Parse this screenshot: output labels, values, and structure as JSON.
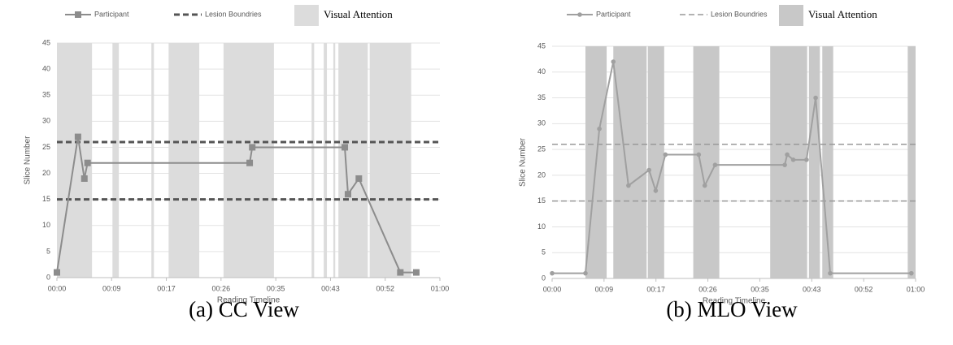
{
  "chart_data": [
    {
      "type": "line",
      "caption": "(a) CC View",
      "xlabel": "Reading Timeline",
      "ylabel": "Slice Number",
      "xlim": [
        0,
        60
      ],
      "xticks": [
        {
          "value": 0,
          "label": "00:00"
        },
        {
          "value": 8.57,
          "label": "00:09"
        },
        {
          "value": 17.14,
          "label": "00:17"
        },
        {
          "value": 25.71,
          "label": "00:26"
        },
        {
          "value": 34.29,
          "label": "00:35"
        },
        {
          "value": 42.86,
          "label": "00:43"
        },
        {
          "value": 51.43,
          "label": "00:52"
        },
        {
          "value": 60,
          "label": "01:00"
        }
      ],
      "ylim": [
        0,
        45
      ],
      "yticks": [
        0,
        5,
        10,
        15,
        20,
        25,
        30,
        35,
        40,
        45
      ],
      "grid": true,
      "series": [
        {
          "name": "Participant",
          "color": "#8c8c8c",
          "marker": "square",
          "x": [
            0,
            3.3,
            4.3,
            4.8,
            30.2,
            30.6,
            45.1,
            45.6,
            47.3,
            53.8,
            56.3
          ],
          "values": [
            1,
            27,
            19,
            22,
            22,
            25,
            25,
            16,
            19,
            1,
            1
          ]
        }
      ],
      "reference_lines": {
        "name": "Lesion Boundries",
        "color": "#555555",
        "width": 3,
        "values": [
          15,
          26
        ]
      },
      "shaded_regions": {
        "name": "Visual Attention",
        "color": "#dcdcdc",
        "spans": [
          [
            0,
            5.5
          ],
          [
            8.7,
            9.7
          ],
          [
            14.8,
            15.2
          ],
          [
            17.5,
            22.3
          ],
          [
            26.1,
            34.0
          ],
          [
            39.9,
            40.3
          ],
          [
            41.8,
            42.3
          ],
          [
            43.3,
            43.6
          ],
          [
            44.1,
            48.7
          ],
          [
            49.0,
            55.5
          ]
        ]
      }
    },
    {
      "type": "line",
      "caption": "(b) MLO View",
      "xlabel": "Reading Timeline",
      "ylabel": "Slice Number",
      "xlim": [
        0,
        60
      ],
      "xticks": [
        {
          "value": 0,
          "label": "00:00"
        },
        {
          "value": 8.57,
          "label": "00:09"
        },
        {
          "value": 17.14,
          "label": "00:17"
        },
        {
          "value": 25.71,
          "label": "00:26"
        },
        {
          "value": 34.29,
          "label": "00:35"
        },
        {
          "value": 42.86,
          "label": "00:43"
        },
        {
          "value": 51.43,
          "label": "00:52"
        },
        {
          "value": 60,
          "label": "01:00"
        }
      ],
      "ylim": [
        0,
        45
      ],
      "yticks": [
        0,
        5,
        10,
        15,
        20,
        25,
        30,
        35,
        40,
        45
      ],
      "grid": true,
      "series": [
        {
          "name": "Participant",
          "color": "#a0a0a0",
          "marker": "circle",
          "x": [
            0,
            5.5,
            7.8,
            10.1,
            12.6,
            16,
            17.1,
            18.7,
            24.2,
            25.2,
            26.9,
            38.4,
            38.8,
            39.8,
            42,
            43.5,
            45.9,
            59.3
          ],
          "values": [
            1,
            1,
            29,
            42,
            18,
            21,
            17,
            24,
            24,
            18,
            22,
            22,
            24,
            23,
            23,
            35,
            1,
            1
          ]
        }
      ],
      "reference_lines": {
        "name": "Lesion Boundries",
        "color": "#999999",
        "width": 1.5,
        "values": [
          15,
          26
        ]
      },
      "shaded_regions": {
        "name": "Visual Attention",
        "color": "#c8c8c8",
        "spans": [
          [
            5.5,
            9.0
          ],
          [
            10.1,
            15.6
          ],
          [
            15.8,
            18.5
          ],
          [
            23.3,
            27.6
          ],
          [
            36.0,
            42.1
          ],
          [
            42.4,
            44.2
          ],
          [
            44.6,
            46.4
          ],
          [
            58.7,
            60
          ]
        ]
      }
    }
  ]
}
